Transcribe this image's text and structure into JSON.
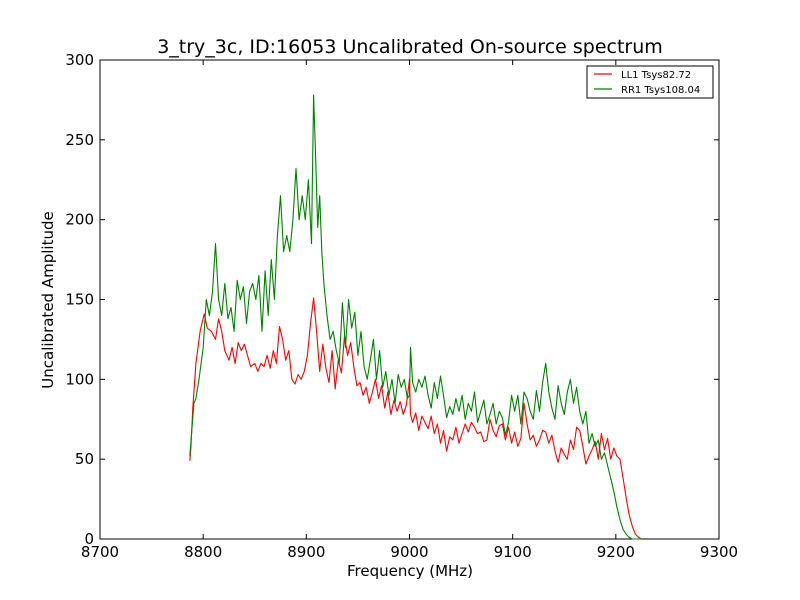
{
  "chart_data": {
    "type": "line",
    "title": "3_try_3c, ID:16053 Uncalibrated On-source spectrum",
    "xlabel": "Frequency (MHz)",
    "ylabel": "Uncalibrated Amplitude",
    "xlim": [
      8700,
      9300
    ],
    "ylim": [
      0,
      300
    ],
    "xticks": [
      8700,
      8800,
      8900,
      9000,
      9100,
      9200,
      9300
    ],
    "yticks": [
      0,
      50,
      100,
      150,
      200,
      250,
      300
    ],
    "grid": false,
    "legend_position": "top-right",
    "series": [
      {
        "name": "LL1 Tsys82.72",
        "color": "#ff0000",
        "x": [
          8787,
          8788,
          8790,
          8793,
          8797,
          8801,
          8804,
          8808,
          8812,
          8815,
          8818,
          8821,
          8825,
          8828,
          8831,
          8834,
          8837,
          8840,
          8843,
          8846,
          8850,
          8853,
          8856,
          8859,
          8862,
          8865,
          8868,
          8871,
          8874,
          8877,
          8880,
          8883,
          8886,
          8889,
          8892,
          8895,
          8898,
          8901,
          8904,
          8907,
          8910,
          8913,
          8916,
          8919,
          8922,
          8925,
          8928,
          8931,
          8934,
          8937,
          8940,
          8943,
          8946,
          8949,
          8952,
          8955,
          8958,
          8961,
          8964,
          8967,
          8970,
          8973,
          8976,
          8979,
          8982,
          8985,
          8988,
          8991,
          8994,
          8997,
          9000,
          9001,
          9003,
          9006,
          9009,
          9012,
          9015,
          9018,
          9021,
          9024,
          9027,
          9030,
          9033,
          9036,
          9039,
          9042,
          9045,
          9048,
          9051,
          9054,
          9057,
          9060,
          9063,
          9066,
          9069,
          9072,
          9075,
          9078,
          9081,
          9084,
          9087,
          9090,
          9093,
          9096,
          9099,
          9102,
          9105,
          9108,
          9111,
          9114,
          9117,
          9120,
          9123,
          9126,
          9129,
          9132,
          9135,
          9138,
          9141,
          9144,
          9147,
          9150,
          9153,
          9156,
          9159,
          9162,
          9165,
          9168,
          9171,
          9174,
          9177,
          9180,
          9183,
          9186,
          9189,
          9192,
          9195,
          9198,
          9201,
          9204,
          9207,
          9210,
          9213,
          9216,
          9219,
          9222,
          9225
        ],
        "y": [
          49,
          56,
          82,
          110,
          130,
          141,
          132,
          130,
          125,
          138,
          130,
          118,
          112,
          120,
          110,
          123,
          118,
          122,
          115,
          108,
          110,
          105,
          110,
          108,
          115,
          107,
          118,
          110,
          133,
          125,
          112,
          118,
          100,
          97,
          103,
          100,
          105,
          115,
          135,
          151,
          130,
          105,
          122,
          107,
          98,
          118,
          94,
          112,
          104,
          127,
          115,
          123,
          108,
          96,
          98,
          90,
          95,
          85,
          92,
          100,
          88,
          96,
          82,
          92,
          78,
          87,
          80,
          86,
          78,
          84,
          100,
          78,
          73,
          79,
          68,
          77,
          73,
          69,
          77,
          66,
          72,
          60,
          68,
          55,
          64,
          62,
          70,
          60,
          66,
          72,
          67,
          73,
          70,
          66,
          67,
          61,
          62,
          75,
          68,
          64,
          71,
          72,
          62,
          70,
          60,
          67,
          58,
          63,
          85,
          72,
          62,
          65,
          58,
          62,
          68,
          67,
          60,
          65,
          55,
          48,
          57,
          53,
          50,
          62,
          56,
          70,
          68,
          58,
          47,
          52,
          56,
          61,
          50,
          66,
          56,
          63,
          50,
          57,
          52,
          50,
          38,
          26,
          15,
          8,
          3,
          1,
          0
        ]
      },
      {
        "name": "RR1 Tsys108.04",
        "color": "#008000",
        "x": [
          8787,
          8788,
          8791,
          8793,
          8796,
          8800,
          8803,
          8806,
          8809,
          8812,
          8815,
          8818,
          8821,
          8824,
          8827,
          8830,
          8833,
          8836,
          8839,
          8842,
          8845,
          8848,
          8851,
          8854,
          8857,
          8860,
          8863,
          8866,
          8869,
          8872,
          8875,
          8878,
          8881,
          8884,
          8887,
          8890,
          8893,
          8896,
          8899,
          8902,
          8905,
          8907,
          8909,
          8911,
          8913,
          8915,
          8917,
          8920,
          8923,
          8926,
          8929,
          8932,
          8935,
          8938,
          8941,
          8944,
          8947,
          8950,
          8953,
          8956,
          8959,
          8962,
          8965,
          8968,
          8971,
          8974,
          8977,
          8980,
          8983,
          8986,
          8989,
          8992,
          8995,
          8998,
          9000,
          9001,
          9003,
          9006,
          9009,
          9012,
          9015,
          9018,
          9021,
          9024,
          9027,
          9030,
          9033,
          9036,
          9039,
          9042,
          9045,
          9048,
          9051,
          9054,
          9057,
          9060,
          9063,
          9066,
          9069,
          9072,
          9075,
          9078,
          9081,
          9084,
          9087,
          9090,
          9093,
          9096,
          9099,
          9102,
          9105,
          9108,
          9111,
          9114,
          9117,
          9120,
          9123,
          9126,
          9129,
          9132,
          9135,
          9138,
          9141,
          9144,
          9147,
          9150,
          9153,
          9156,
          9159,
          9162,
          9165,
          9168,
          9171,
          9174,
          9177,
          9180,
          9183,
          9186,
          9189,
          9192,
          9195,
          9198,
          9201,
          9204,
          9207,
          9210,
          9213,
          9216,
          9219,
          9222,
          9225
        ],
        "y": [
          52,
          60,
          85,
          88,
          100,
          120,
          150,
          140,
          155,
          185,
          150,
          140,
          160,
          138,
          145,
          130,
          162,
          150,
          158,
          135,
          155,
          160,
          150,
          165,
          130,
          168,
          140,
          175,
          150,
          190,
          215,
          180,
          190,
          180,
          200,
          232,
          200,
          215,
          200,
          225,
          185,
          278,
          240,
          195,
          215,
          180,
          160,
          140,
          125,
          130,
          118,
          110,
          148,
          120,
          150,
          132,
          142,
          115,
          130,
          108,
          100,
          112,
          125,
          100,
          118,
          95,
          105,
          90,
          100,
          85,
          103,
          95,
          100,
          88,
          90,
          120,
          98,
          92,
          100,
          95,
          102,
          90,
          82,
          98,
          88,
          102,
          90,
          76,
          83,
          78,
          88,
          80,
          90,
          75,
          85,
          80,
          92,
          73,
          80,
          87,
          72,
          78,
          85,
          72,
          80,
          76,
          65,
          73,
          90,
          80,
          90,
          72,
          92,
          88,
          80,
          75,
          93,
          80,
          98,
          110,
          92,
          82,
          75,
          96,
          85,
          78,
          92,
          100,
          85,
          95,
          80,
          72,
          80,
          60,
          66,
          58,
          62,
          50,
          54,
          46,
          38,
          30,
          20,
          12,
          6,
          3,
          1,
          0,
          0,
          0,
          0
        ]
      }
    ]
  }
}
